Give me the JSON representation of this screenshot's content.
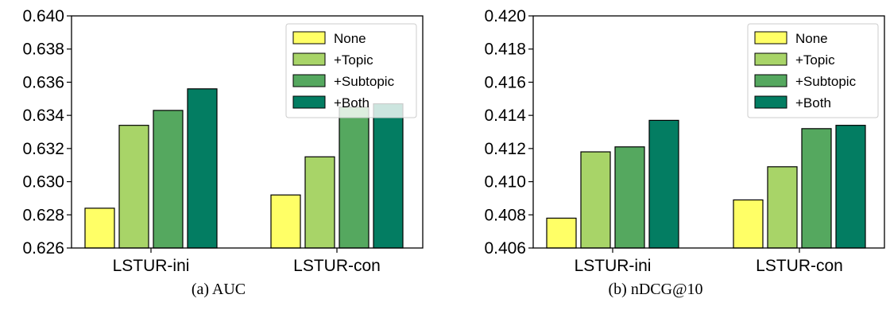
{
  "colors": {
    "None": "#ffff66",
    "+Topic": "#a8d468",
    "+Subtopic": "#55a85f",
    "+Both": "#037d62"
  },
  "chart_data": [
    {
      "type": "bar",
      "categories": [
        "LSTUR-ini",
        "LSTUR-con"
      ],
      "series": [
        {
          "name": "None",
          "values": [
            0.6284,
            0.6292
          ]
        },
        {
          "name": "+Topic",
          "values": [
            0.6334,
            0.6315
          ]
        },
        {
          "name": "+Subtopic",
          "values": [
            0.6343,
            0.6345
          ]
        },
        {
          "name": "+Both",
          "values": [
            0.6356,
            0.6347
          ]
        }
      ],
      "ylim": [
        0.626,
        0.64
      ],
      "yticks": [
        "0.626",
        "0.628",
        "0.630",
        "0.632",
        "0.634",
        "0.636",
        "0.638",
        "0.640"
      ],
      "caption": "(a) AUC",
      "legend_position": "top-right",
      "grid": false
    },
    {
      "type": "bar",
      "categories": [
        "LSTUR-ini",
        "LSTUR-con"
      ],
      "series": [
        {
          "name": "None",
          "values": [
            0.4078,
            0.4089
          ]
        },
        {
          "name": "+Topic",
          "values": [
            0.4118,
            0.4109
          ]
        },
        {
          "name": "+Subtopic",
          "values": [
            0.4121,
            0.4132
          ]
        },
        {
          "name": "+Both",
          "values": [
            0.4137,
            0.4134
          ]
        }
      ],
      "ylim": [
        0.406,
        0.42
      ],
      "yticks": [
        "0.406",
        "0.408",
        "0.410",
        "0.412",
        "0.414",
        "0.416",
        "0.418",
        "0.420"
      ],
      "caption": "(b) nDCG@10",
      "legend_position": "top-right",
      "grid": false
    }
  ]
}
